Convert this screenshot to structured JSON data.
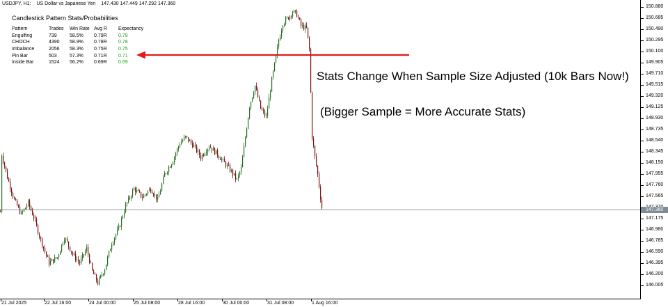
{
  "header": {
    "symbol": "USDJPY, H1:",
    "description": "US Dollar vs Japanese Yen",
    "ohlc": "147.430 147.449 147.292 147.360"
  },
  "stats_panel": {
    "title": "Candlestick Pattern Stats/Probabilities",
    "columns": [
      "Pattern",
      "Trades",
      "Win Rate",
      "Avg R",
      "Expectancy"
    ],
    "rows": [
      [
        "Engulfing",
        "739",
        "58.5%",
        "0.79R",
        "0.79"
      ],
      [
        "CHOCH",
        "4390",
        "58.9%",
        "0.78R",
        "0.78"
      ],
      [
        "Imbalance",
        "2056",
        "58.3%",
        "0.75R",
        "0.75"
      ],
      [
        "Pin Bar",
        "503",
        "57.3%",
        "0.71R",
        "0.71"
      ],
      [
        "Inside Bar",
        "1524",
        "56.2%",
        "0.69R",
        "0.69"
      ]
    ]
  },
  "annotations": {
    "line1": "Stats Change When Sample Size Adjusted (10k Bars Now!)",
    "line2": "(Bigger Sample = More Accurate Stats)"
  },
  "price_axis": {
    "labels": [
      "150.880",
      "150.685",
      "150.490",
      "150.295",
      "150.100",
      "149.905",
      "149.710",
      "149.515",
      "149.320",
      "149.125",
      "148.930",
      "148.735",
      "148.540",
      "148.345",
      "148.150",
      "147.955",
      "147.760",
      "147.565",
      "147.370",
      "147.175",
      "146.980",
      "146.785",
      "146.590",
      "146.395",
      "146.200",
      "146.005"
    ],
    "current_price": "147.360"
  },
  "time_axis": {
    "labels": [
      "21 Jul 2025",
      "22 Jul 16:00",
      "24 Jul 00:00",
      "25 Jul 08:00",
      "28 Jul 16:00",
      "30 Jul 00:00",
      "31 Jul 08:00",
      "1 Aug 16:00"
    ]
  },
  "chart_data": {
    "type": "candlestick",
    "symbol": "USDJPY",
    "timeframe": "H1",
    "y_range": [
      145.95,
      150.95
    ],
    "current_price": 147.36,
    "x_range": [
      "21 Jul 2025",
      "1 Aug 16:00"
    ],
    "key_points": [
      {
        "time": "21 Jul 2025",
        "price": 148.3
      },
      {
        "time": "22 Jul 16:00",
        "price": 146.4
      },
      {
        "time": "24 Jul 00:00",
        "price": 146.05
      },
      {
        "time": "25 Jul 08:00",
        "price": 147.4
      },
      {
        "time": "28 Jul 16:00",
        "price": 148.6
      },
      {
        "time": "30 Jul 00:00",
        "price": 148.0
      },
      {
        "time": "31 Jul 08:00",
        "price": 150.6
      },
      {
        "time": "1 Aug 16:00",
        "price": 147.3
      }
    ]
  },
  "colors": {
    "bull": "#1f6f1f",
    "bear": "#7a1010",
    "arrow": "#e01b1b",
    "expectancy_text": "#1ea01e",
    "price_line": "#8a98a0"
  }
}
